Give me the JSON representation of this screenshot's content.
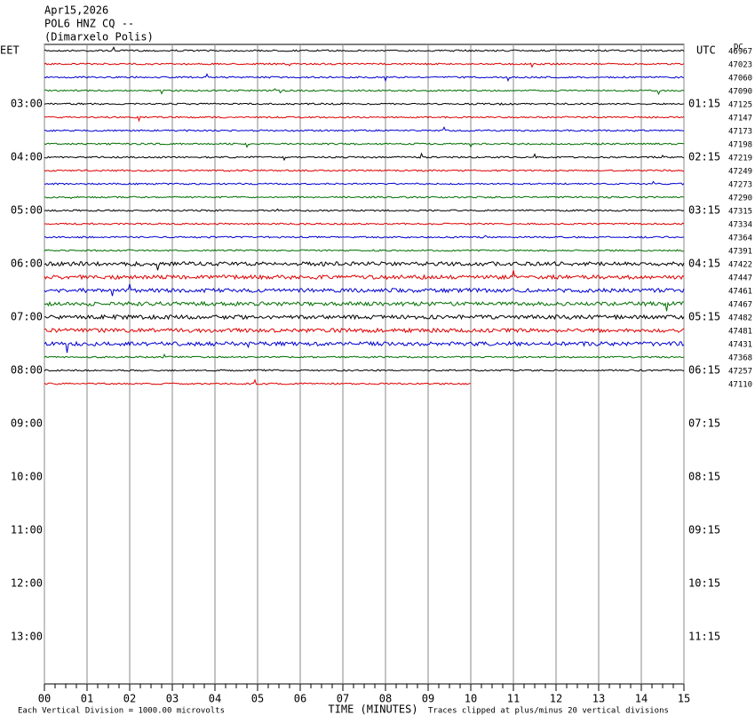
{
  "chart_data": {
    "type": "helicorder",
    "header": [
      "Apr15,2026",
      "POL6 HNZ CQ --",
      "(Dimarxelo Polis)"
    ],
    "left_title": "EET",
    "right_title": "UTC",
    "dc_title": "DC",
    "left_labels": [
      "03:00",
      "04:00",
      "05:00",
      "06:00",
      "07:00",
      "08:00",
      "09:00",
      "10:00",
      "11:00",
      "12:00",
      "13:00"
    ],
    "right_labels": [
      "01:15",
      "02:15",
      "03:15",
      "04:15",
      "05:15",
      "06:15",
      "07:15",
      "08:15",
      "09:15",
      "10:15",
      "11:15"
    ],
    "dc_values": [
      46967,
      47023,
      47060,
      47090,
      47125,
      47147,
      47173,
      47198,
      47219,
      47249,
      47273,
      47290,
      47315,
      47334,
      47364,
      47391,
      47422,
      47447,
      47461,
      47467,
      47482,
      47481,
      47431,
      47368,
      47257,
      47110
    ],
    "trace_colors": [
      "#000000",
      "#e00000",
      "#0000d0",
      "#007000"
    ],
    "xlabel": "TIME (MINUTES)",
    "xlim": [
      0,
      15
    ],
    "xticks": [
      {
        "value": 0,
        "label": "00"
      },
      {
        "value": 1,
        "label": "01"
      },
      {
        "value": 2,
        "label": "02"
      },
      {
        "value": 3,
        "label": "03"
      },
      {
        "value": 4,
        "label": "04"
      },
      {
        "value": 5,
        "label": "05"
      },
      {
        "value": 6,
        "label": "06"
      },
      {
        "value": 7,
        "label": "07"
      },
      {
        "value": 8,
        "label": "08"
      },
      {
        "value": 9,
        "label": "09"
      },
      10,
      11,
      12,
      13,
      14,
      15
    ],
    "footer_left": "Each Vertical Division = 1000.00 microvolts",
    "footer_right": "Traces clipped at plus/minus 20 vertical divisions"
  }
}
